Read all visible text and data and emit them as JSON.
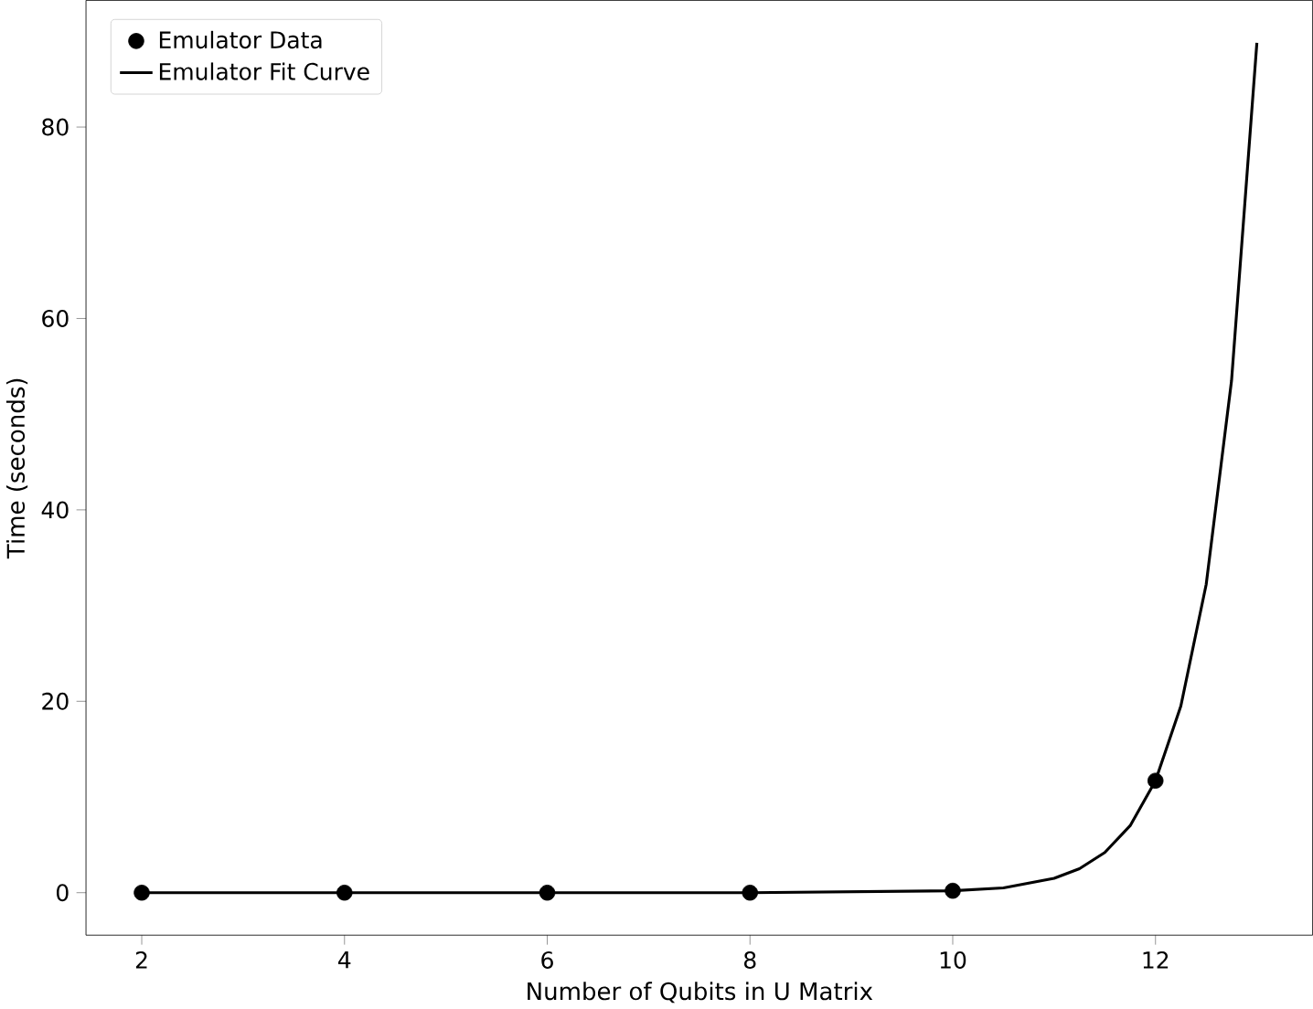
{
  "chart_data": {
    "type": "line",
    "xlabel": "Number of Qubits in U Matrix",
    "ylabel": "Time (seconds)",
    "xlim": [
      1.45,
      13.55
    ],
    "ylim": [
      -4.44,
      93.24
    ],
    "xticks": [
      2,
      4,
      6,
      8,
      10,
      12
    ],
    "yticks": [
      0,
      20,
      40,
      60,
      80
    ],
    "legend": "top left",
    "series": [
      {
        "name": "Emulator Data",
        "type": "scatter",
        "marker": "circle",
        "color": "#000000",
        "x": [
          2,
          4,
          6,
          8,
          10,
          12
        ],
        "values": [
          0,
          0,
          0,
          0,
          0.2,
          11.7
        ]
      },
      {
        "name": "Emulator Fit Curve",
        "marker": "none",
        "line_style": "solid",
        "color": "#000000",
        "x": [
          2,
          4,
          6,
          8,
          9,
          10,
          10.5,
          11,
          11.25,
          11.5,
          11.75,
          12,
          12.25,
          12.5,
          12.75,
          13
        ],
        "values": [
          0,
          0,
          0,
          0,
          0.1,
          0.2,
          0.5,
          1.5,
          2.5,
          4.2,
          7,
          11.7,
          19.5,
          32.2,
          53.5,
          88.8
        ]
      }
    ]
  }
}
